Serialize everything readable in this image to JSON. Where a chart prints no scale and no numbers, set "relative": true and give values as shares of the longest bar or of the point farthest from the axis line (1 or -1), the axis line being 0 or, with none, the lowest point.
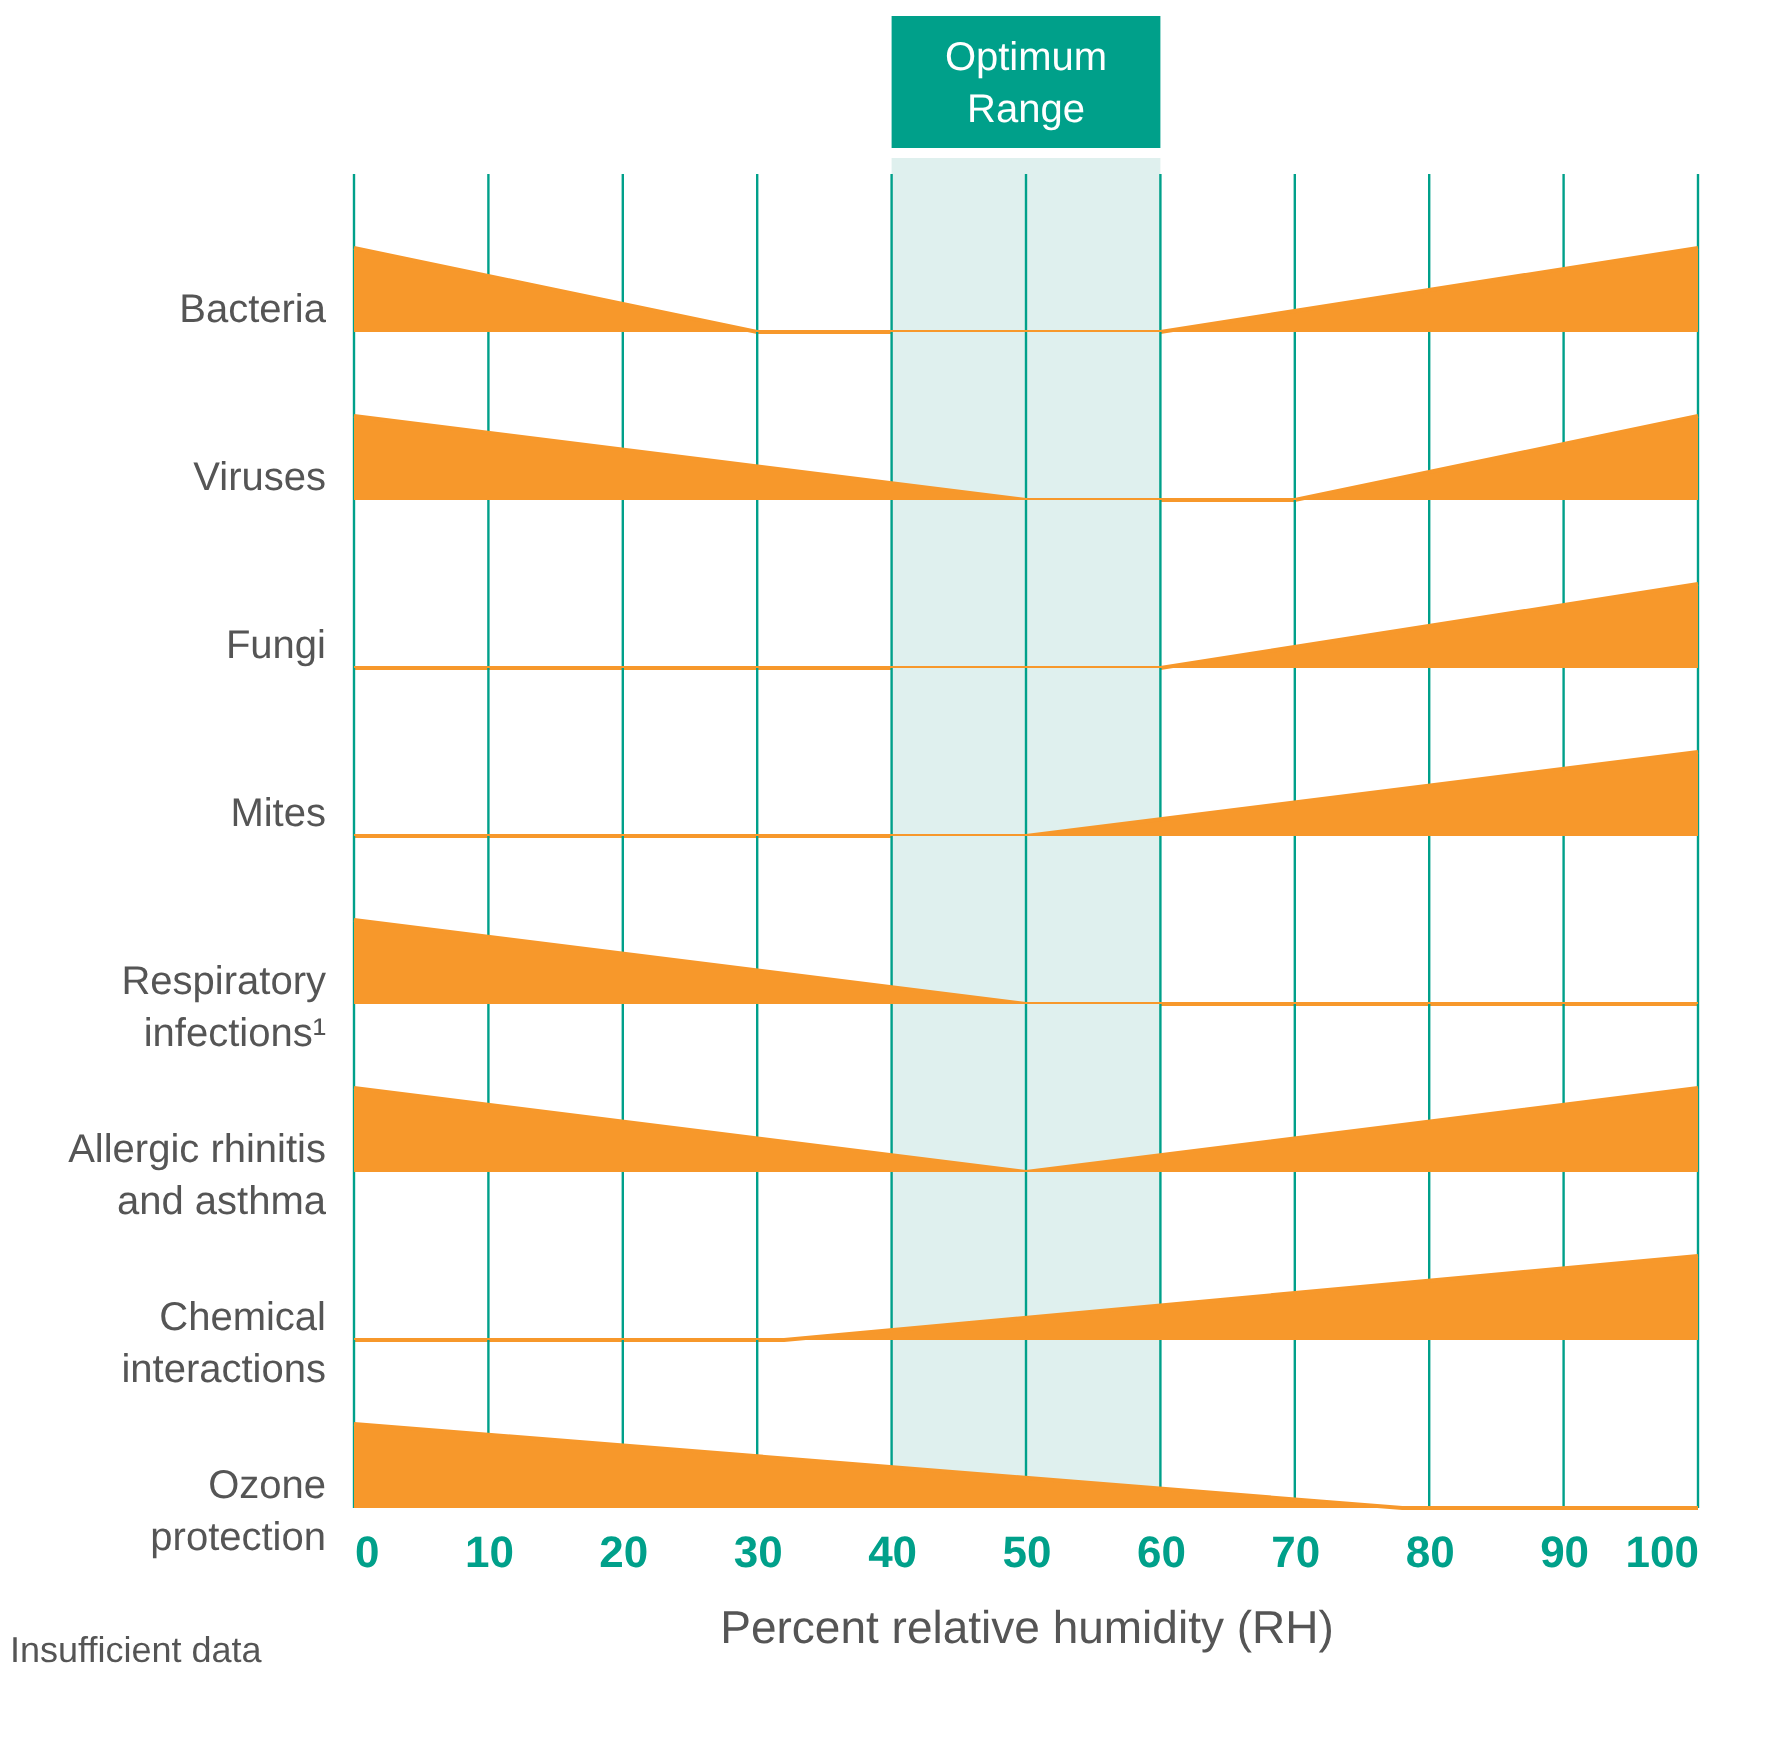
{
  "chart_data": [
    {
      "type": "area",
      "relative": true,
      "ylabel": "Bacteria",
      "x": [
        0,
        30,
        60,
        100
      ],
      "values": [
        1,
        0,
        0,
        1
      ],
      "color": "#f7982b",
      "xlim": [
        0,
        100
      ],
      "xticks": [
        0,
        10,
        20,
        30,
        40,
        50,
        60,
        70,
        80,
        90,
        100
      ],
      "grid": "x",
      "tick_labels": false,
      "bands": [
        {
          "axis": "x",
          "from": 40,
          "to": 60,
          "label": "Optimum Range",
          "color": "#dff0ee"
        }
      ]
    },
    {
      "type": "area",
      "relative": true,
      "ylabel": "Viruses",
      "x": [
        0,
        50,
        70,
        100
      ],
      "values": [
        1,
        0,
        0,
        1
      ],
      "color": "#f7982b",
      "xlim": [
        0,
        100
      ],
      "xticks": [
        0,
        10,
        20,
        30,
        40,
        50,
        60,
        70,
        80,
        90,
        100
      ],
      "grid": "x",
      "tick_labels": false,
      "bands": [
        {
          "axis": "x",
          "from": 40,
          "to": 60,
          "color": "#dff0ee"
        }
      ]
    },
    {
      "type": "area",
      "relative": true,
      "ylabel": "Fungi",
      "x": [
        0,
        60,
        100
      ],
      "values": [
        0,
        0,
        1
      ],
      "color": "#f7982b",
      "xlim": [
        0,
        100
      ],
      "xticks": [
        0,
        10,
        20,
        30,
        40,
        50,
        60,
        70,
        80,
        90,
        100
      ],
      "grid": "x",
      "tick_labels": false,
      "bands": [
        {
          "axis": "x",
          "from": 40,
          "to": 60,
          "color": "#dff0ee"
        }
      ]
    },
    {
      "type": "area",
      "relative": true,
      "ylabel": "Mites",
      "x": [
        0,
        50,
        100
      ],
      "values": [
        0,
        0,
        1
      ],
      "color": "#f7982b",
      "xlim": [
        0,
        100
      ],
      "xticks": [
        0,
        10,
        20,
        30,
        40,
        50,
        60,
        70,
        80,
        90,
        100
      ],
      "grid": "x",
      "tick_labels": false,
      "bands": [
        {
          "axis": "x",
          "from": 40,
          "to": 60,
          "color": "#dff0ee"
        }
      ]
    },
    {
      "type": "area",
      "relative": true,
      "ylabel": "Respiratory infections¹",
      "x": [
        0,
        50,
        100
      ],
      "values": [
        1,
        0,
        0
      ],
      "color": "#f7982b",
      "xlim": [
        0,
        100
      ],
      "xticks": [
        0,
        10,
        20,
        30,
        40,
        50,
        60,
        70,
        80,
        90,
        100
      ],
      "grid": "x",
      "tick_labels": false,
      "bands": [
        {
          "axis": "x",
          "from": 40,
          "to": 60,
          "color": "#dff0ee"
        }
      ]
    },
    {
      "type": "area",
      "relative": true,
      "ylabel": "Allergic rhinitis and asthma",
      "x": [
        0,
        50,
        100
      ],
      "values": [
        1,
        0,
        1
      ],
      "color": "#f7982b",
      "xlim": [
        0,
        100
      ],
      "xticks": [
        0,
        10,
        20,
        30,
        40,
        50,
        60,
        70,
        80,
        90,
        100
      ],
      "grid": "x",
      "tick_labels": false,
      "bands": [
        {
          "axis": "x",
          "from": 40,
          "to": 60,
          "color": "#dff0ee"
        }
      ]
    },
    {
      "type": "area",
      "relative": true,
      "ylabel": "Chemical interactions",
      "x": [
        0,
        32,
        100
      ],
      "values": [
        0,
        0,
        1
      ],
      "color": "#f7982b",
      "xlim": [
        0,
        100
      ],
      "xticks": [
        0,
        10,
        20,
        30,
        40,
        50,
        60,
        70,
        80,
        90,
        100
      ],
      "grid": "x",
      "tick_labels": false,
      "bands": [
        {
          "axis": "x",
          "from": 40,
          "to": 60,
          "color": "#dff0ee"
        }
      ]
    },
    {
      "type": "area",
      "relative": true,
      "ylabel": "Ozone protection",
      "x": [
        0,
        78,
        100
      ],
      "values": [
        1,
        0,
        0
      ],
      "color": "#f7982b",
      "xlim": [
        0,
        100
      ],
      "xticks": [
        0,
        10,
        20,
        30,
        40,
        50,
        60,
        70,
        80,
        90,
        100
      ],
      "grid": "x",
      "tick_labels": "x",
      "xlabel": "Percent relative humidity (RH)",
      "annotations": [
        "Insufficient data"
      ],
      "bands": [
        {
          "axis": "x",
          "from": 40,
          "to": 60,
          "color": "#dff0ee"
        }
      ]
    }
  ]
}
